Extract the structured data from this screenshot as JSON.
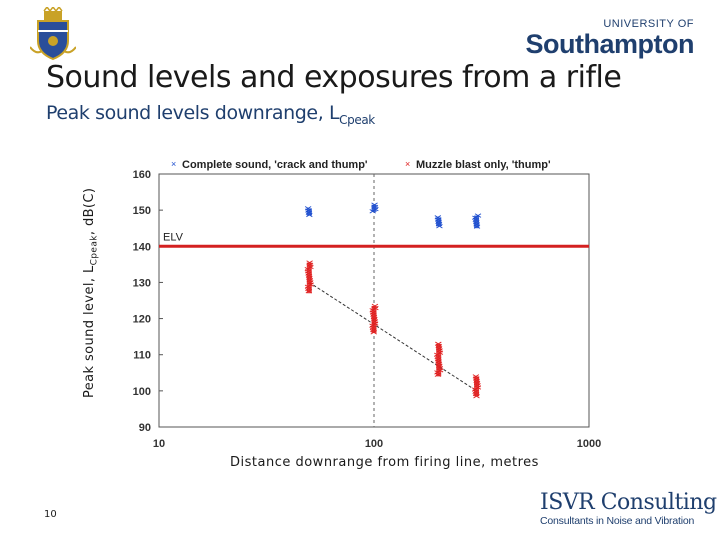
{
  "slide": {
    "title": "Sound levels and exposures from a rifle",
    "subtitle_main": "Peak sound levels downrange, L",
    "subtitle_sub": "Cpeak",
    "page_number": "10"
  },
  "logos": {
    "university_small": "UNIVERSITY OF",
    "university_big": "Southampton",
    "isvr_brand": "ISVR Consulting",
    "isvr_tagline": "Consultants in Noise and Vibration"
  },
  "colors": {
    "blue_series": "#1f4fcf",
    "red_series": "#e02020",
    "elv_line": "#d42020",
    "brand_navy": "#1f3f6e"
  },
  "chart_data": {
    "type": "scatter",
    "x_scale": "log",
    "xlim": [
      10,
      1000
    ],
    "ylim": [
      90,
      160
    ],
    "x_ticks": [
      "10",
      "100",
      "1000"
    ],
    "y_ticks": [
      "90",
      "100",
      "110",
      "120",
      "130",
      "140",
      "150",
      "160"
    ],
    "grid": "vertical dashed at log decades",
    "xlabel": "Distance downrange from firing line, metres",
    "ylabel_main": "Peak sound level, L",
    "ylabel_sub": "Cpeak",
    "ylabel_unit": ", dB(C)",
    "legend_position": "top",
    "series": [
      {
        "name": "Complete sound, 'crack and thump'",
        "marker": "x",
        "color": "#1f4fcf",
        "points": [
          {
            "x": 50,
            "y_min": 148.5,
            "y_max": 150.5
          },
          {
            "x": 100,
            "y_min": 149.5,
            "y_max": 151.5
          },
          {
            "x": 200,
            "y_min": 145.5,
            "y_max": 148
          },
          {
            "x": 300,
            "y_min": 145,
            "y_max": 148.5
          }
        ]
      },
      {
        "name": "Muzzle blast only, 'thump'",
        "marker": "x",
        "color": "#e02020",
        "points": [
          {
            "x": 50,
            "y_min": 127,
            "y_max": 135.5
          },
          {
            "x": 100,
            "y_min": 116,
            "y_max": 123.5
          },
          {
            "x": 200,
            "y_min": 104,
            "y_max": 113
          },
          {
            "x": 300,
            "y_min": 98.5,
            "y_max": 104
          }
        ]
      }
    ],
    "trend_line": {
      "x": [
        50,
        300
      ],
      "y": [
        130,
        100
      ]
    },
    "reference_line": {
      "label": "ELV",
      "y": 140
    }
  }
}
